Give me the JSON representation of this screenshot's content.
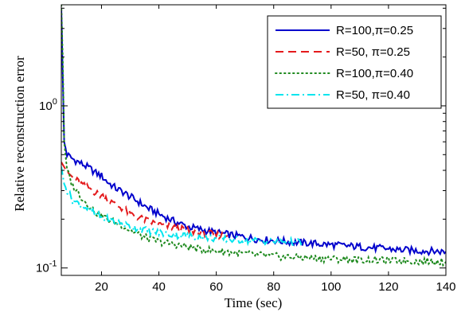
{
  "chart_data": {
    "type": "line",
    "title": "",
    "xlabel": "Time (sec)",
    "ylabel": "Relative reconstruction error",
    "xlim": [
      6,
      140
    ],
    "ylim": [
      0.09,
      4.2
    ],
    "yscale": "log",
    "grid": false,
    "legend_position": "top-right",
    "x_ticks": [
      20,
      40,
      60,
      80,
      100,
      120,
      140
    ],
    "y_ticks": [
      {
        "value": 1,
        "base": "10",
        "exponent": "0"
      },
      {
        "value": 0.1,
        "base": "10",
        "exponent": "-1"
      }
    ],
    "series": [
      {
        "name": "R=100,π=0.25",
        "color": "#0000cc",
        "dash": "solid",
        "x": [
          6,
          7,
          8,
          10,
          12,
          14,
          16,
          18,
          20,
          22,
          25,
          28,
          30,
          33,
          36,
          40,
          45,
          50,
          55,
          60,
          65,
          70,
          75,
          80,
          85,
          90,
          95,
          100,
          105,
          110,
          115,
          120,
          125,
          130,
          135,
          140
        ],
        "y": [
          4.0,
          0.6,
          0.5,
          0.47,
          0.45,
          0.43,
          0.41,
          0.385,
          0.37,
          0.34,
          0.31,
          0.29,
          0.275,
          0.255,
          0.235,
          0.215,
          0.195,
          0.18,
          0.172,
          0.165,
          0.16,
          0.155,
          0.15,
          0.148,
          0.145,
          0.143,
          0.141,
          0.139,
          0.137,
          0.135,
          0.133,
          0.131,
          0.129,
          0.128,
          0.127,
          0.126
        ]
      },
      {
        "name": "R=50, π=0.25",
        "color": "#e41a1c",
        "dash": "dashed",
        "x": [
          6,
          7,
          8,
          10,
          12,
          14,
          16,
          18,
          20,
          22,
          24,
          26,
          28,
          30,
          33,
          36,
          40,
          45,
          50,
          55,
          60,
          64
        ],
        "y": [
          0.45,
          0.42,
          0.39,
          0.36,
          0.34,
          0.32,
          0.31,
          0.29,
          0.28,
          0.27,
          0.25,
          0.24,
          0.23,
          0.215,
          0.205,
          0.195,
          0.185,
          0.178,
          0.17,
          0.165,
          0.16,
          0.158
        ]
      },
      {
        "name": "R=100,π=0.40",
        "color": "#1f8a1f",
        "dash": "dotted",
        "x": [
          6,
          6.5,
          7,
          8,
          10,
          12,
          14,
          16,
          18,
          20,
          22,
          25,
          28,
          30,
          35,
          40,
          45,
          50,
          55,
          60,
          65,
          70,
          75,
          80,
          85,
          90,
          95,
          100,
          105,
          110,
          115,
          120,
          125,
          130,
          135,
          140
        ],
        "y": [
          4.2,
          2.0,
          0.6,
          0.4,
          0.32,
          0.29,
          0.26,
          0.24,
          0.22,
          0.21,
          0.2,
          0.19,
          0.18,
          0.17,
          0.155,
          0.145,
          0.14,
          0.135,
          0.13,
          0.127,
          0.125,
          0.122,
          0.12,
          0.118,
          0.117,
          0.116,
          0.115,
          0.114,
          0.113,
          0.112,
          0.112,
          0.111,
          0.111,
          0.11,
          0.11,
          0.109
        ]
      },
      {
        "name": "R=50, π=0.40",
        "color": "#00e5ee",
        "dash": "dashdot",
        "x": [
          6,
          7,
          8,
          9,
          10,
          12,
          14,
          16,
          18,
          20,
          22,
          24,
          26,
          28,
          30,
          33,
          36,
          40,
          45,
          50,
          55,
          60,
          65,
          70,
          75,
          80,
          85,
          90
        ],
        "y": [
          0.42,
          0.33,
          0.3,
          0.28,
          0.26,
          0.25,
          0.24,
          0.225,
          0.215,
          0.205,
          0.2,
          0.195,
          0.19,
          0.185,
          0.18,
          0.175,
          0.17,
          0.165,
          0.16,
          0.158,
          0.155,
          0.152,
          0.15,
          0.148,
          0.147,
          0.146,
          0.145,
          0.144
        ]
      }
    ]
  }
}
